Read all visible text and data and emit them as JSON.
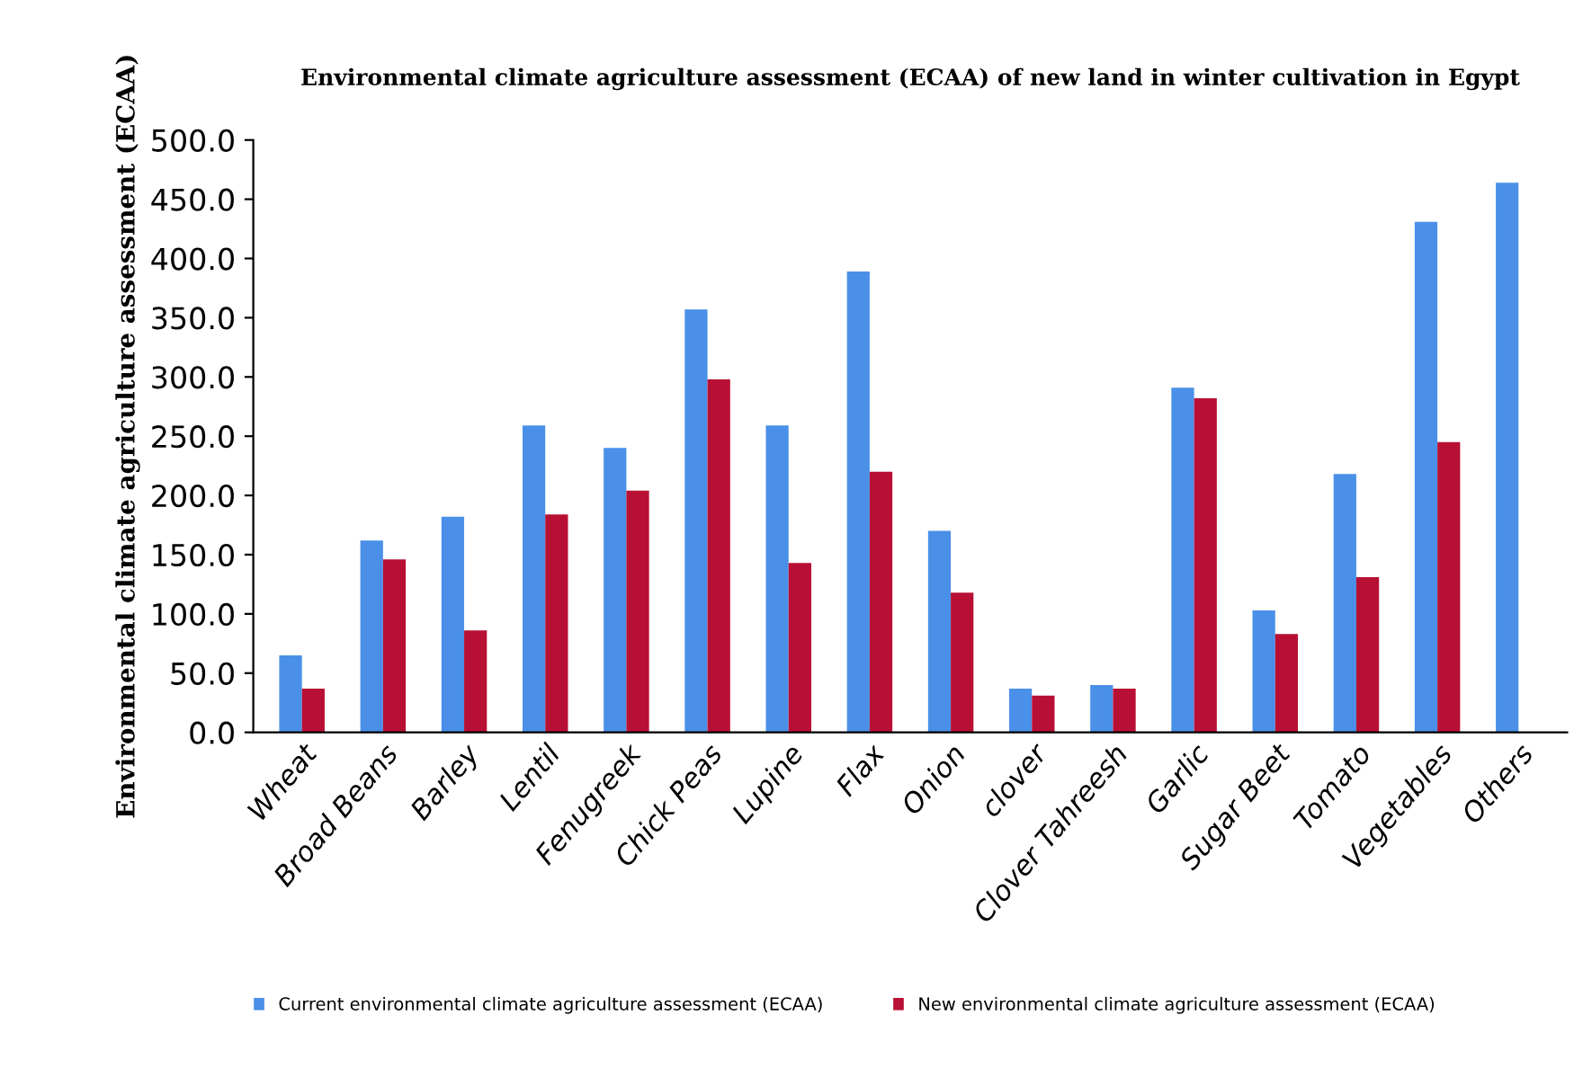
{
  "chart_data": {
    "type": "bar",
    "title": "Environmental climate agriculture assessment (ECAA) of new land in winter cultivation in Egypt",
    "ylabel": "Environmental climate agriculture assessment (ECAA)",
    "categories": [
      "Wheat",
      "Broad Beans",
      "Barley",
      "Lentil",
      "Fenugreek",
      "Chick Peas",
      "Lupine",
      "Flax",
      "Onion",
      "clover",
      "Clover Tahreesh",
      "Garlic",
      "Sugar Beet",
      "Tomato",
      "Vegetables",
      "Others"
    ],
    "series": [
      {
        "name": "Current environmental climate agriculture assessment (ECAA)",
        "color": "#4a90e8",
        "values": [
          65,
          162,
          182,
          259,
          240,
          357,
          259,
          389,
          170,
          37,
          40,
          291,
          103,
          218,
          431,
          464
        ]
      },
      {
        "name": "New environmental climate agriculture assessment (ECAA)",
        "color": "#b81034",
        "values": [
          37,
          146,
          86,
          184,
          204,
          298,
          143,
          220,
          118,
          31,
          37,
          282,
          83,
          131,
          245,
          null
        ]
      }
    ],
    "ylim": [
      0,
      500
    ],
    "yticks": [
      {
        "value": 0,
        "label": "0.0"
      },
      {
        "value": 50,
        "label": "50.0"
      },
      {
        "value": 100,
        "label": "100.0"
      },
      {
        "value": 150,
        "label": "150.0"
      },
      {
        "value": 200,
        "label": "200.0"
      },
      {
        "value": 250,
        "label": "250.0"
      },
      {
        "value": 300,
        "label": "300.0"
      },
      {
        "value": 350,
        "label": "350.0"
      },
      {
        "value": 400,
        "label": "400.0"
      },
      {
        "value": 450,
        "label": "450.0"
      },
      {
        "value": 500,
        "label": "500.0"
      }
    ],
    "grid": false,
    "legend": "bottom"
  }
}
